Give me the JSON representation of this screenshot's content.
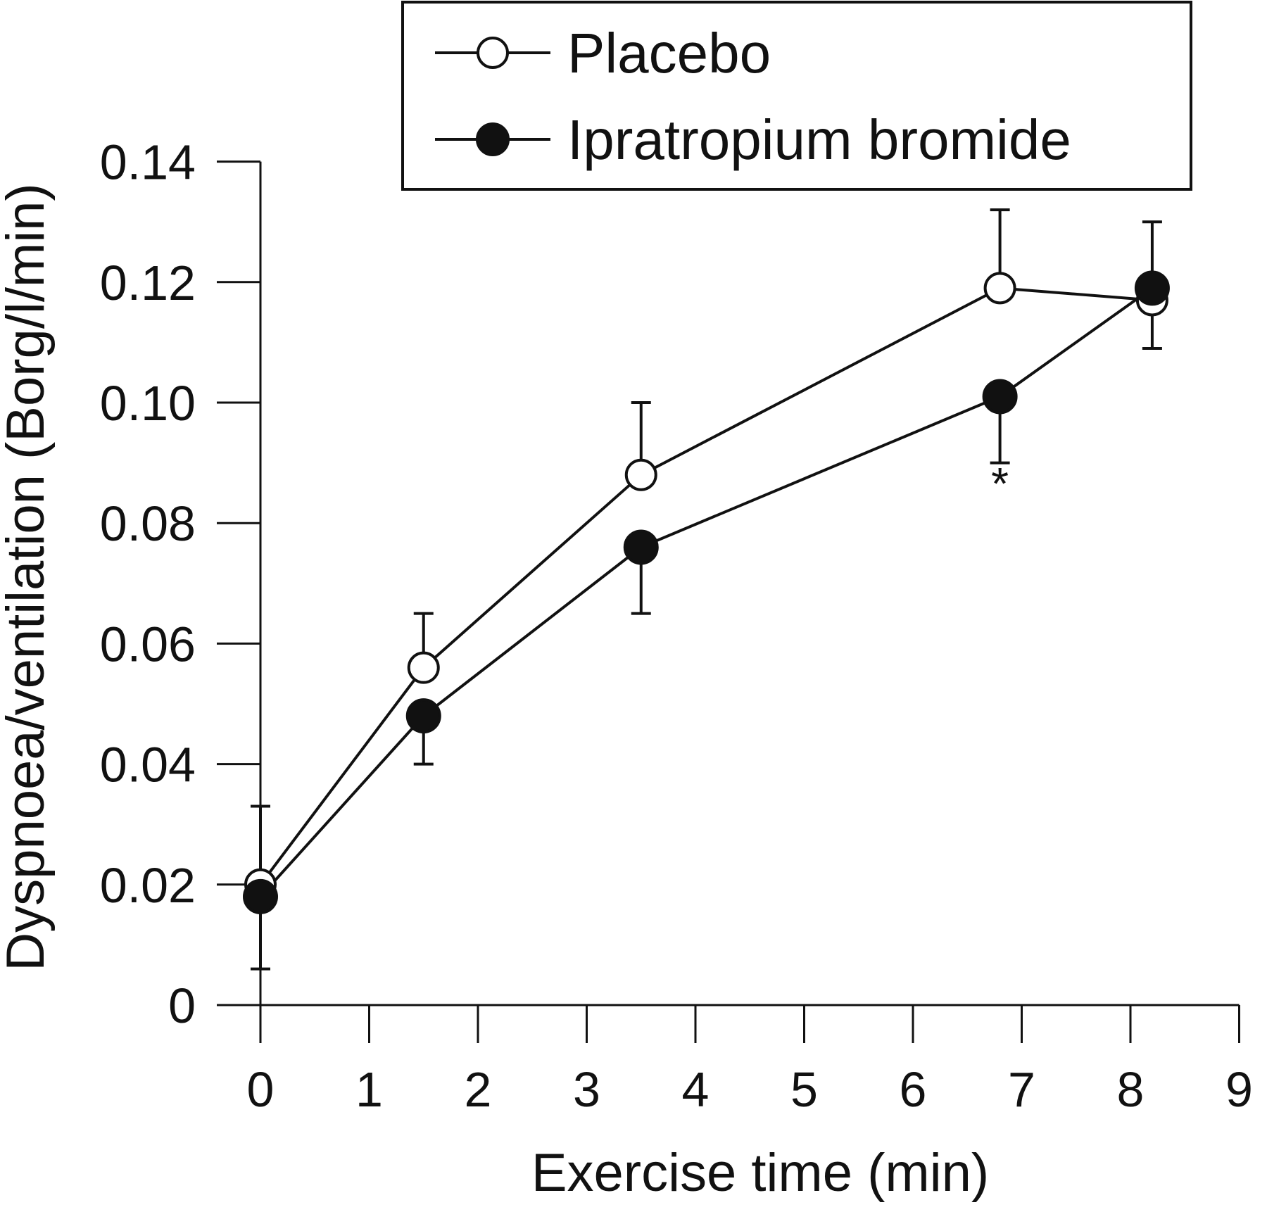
{
  "chart_data": {
    "type": "line",
    "title": "",
    "xlabel": "Exercise time (min)",
    "ylabel": "Dyspnoea/ventilation (Borg/l/min)",
    "xlim": [
      0,
      9
    ],
    "ylim": [
      0,
      0.14
    ],
    "x_ticks": [
      0,
      1,
      2,
      3,
      4,
      5,
      6,
      7,
      8,
      9
    ],
    "y_ticks": [
      0,
      0.02,
      0.04,
      0.06,
      0.08,
      0.1,
      0.12,
      0.14
    ],
    "y_tick_labels": [
      "0",
      "0.02",
      "0.04",
      "0.06",
      "0.08",
      "0.10",
      "0.12",
      "0.14"
    ],
    "x_tick_labels": [
      "0",
      "1",
      "2",
      "3",
      "4",
      "5",
      "6",
      "7",
      "8",
      "9"
    ],
    "grid": false,
    "legend": "top-right",
    "series": [
      {
        "name": "Placebo",
        "marker": "open-circle",
        "color": "#111111",
        "x": [
          0,
          1.5,
          3.5,
          6.8,
          8.2
        ],
        "y": [
          0.02,
          0.056,
          0.088,
          0.119,
          0.117
        ],
        "error_upper": [
          0.033,
          0.065,
          0.1,
          0.132,
          0.117
        ],
        "error_lower": [
          0.02,
          0.056,
          0.088,
          0.119,
          0.109
        ]
      },
      {
        "name": "Ipratropium bromide",
        "marker": "filled-circle",
        "color": "#111111",
        "x": [
          0,
          1.5,
          3.5,
          6.8,
          8.2
        ],
        "y": [
          0.018,
          0.048,
          0.076,
          0.101,
          0.119
        ],
        "error_upper": [
          0.018,
          0.048,
          0.076,
          0.101,
          0.13
        ],
        "error_lower": [
          0.006,
          0.04,
          0.065,
          0.09,
          0.119
        ]
      }
    ],
    "annotations": [
      {
        "text": "*",
        "x": 6.8,
        "y": 0.084
      }
    ]
  }
}
